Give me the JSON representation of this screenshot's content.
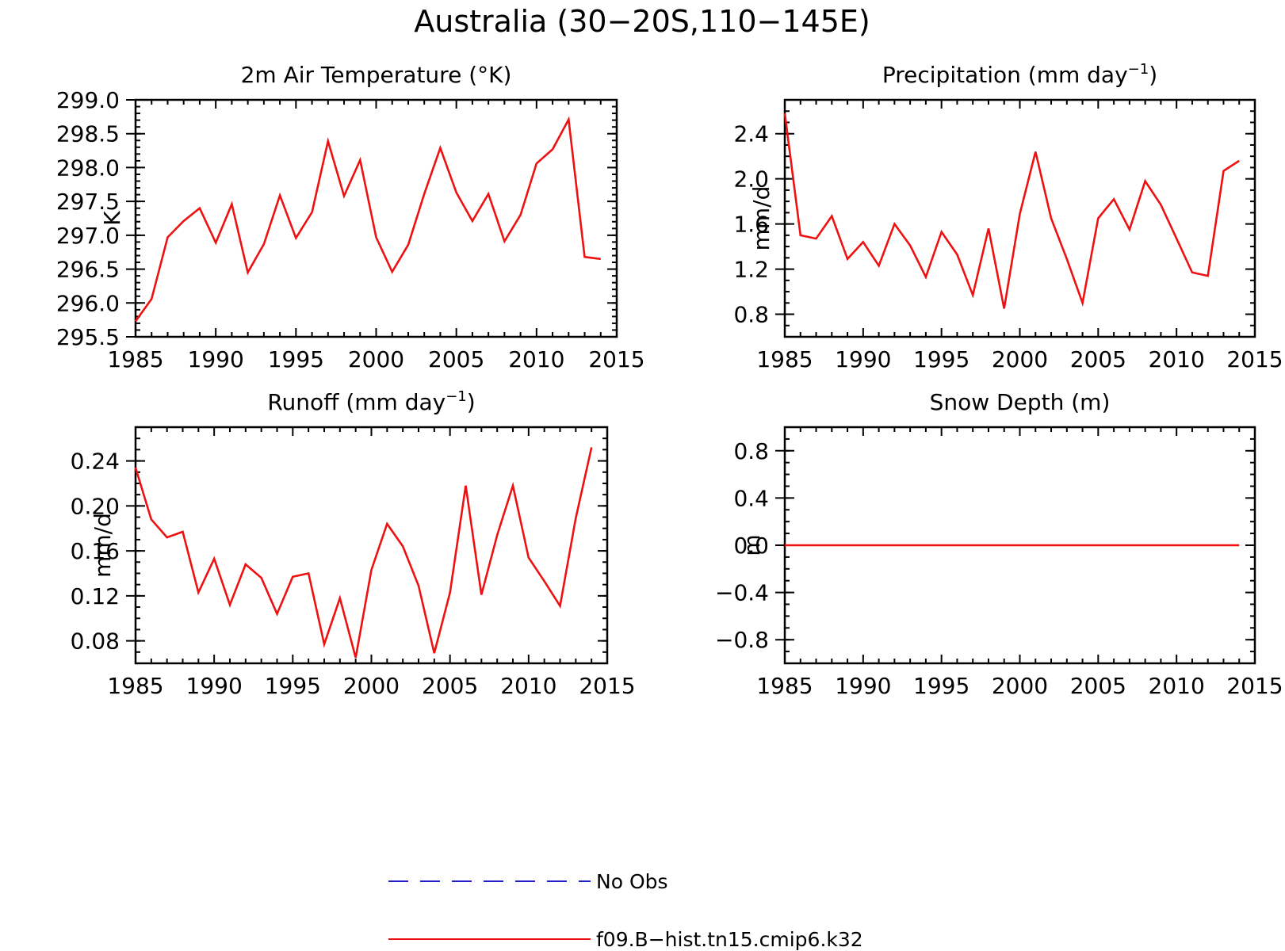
{
  "figure_title": "Australia (30−20S,110−145E)",
  "legend": {
    "entries": [
      {
        "label": "No Obs",
        "color": "#1f1fcc",
        "dash": true
      },
      {
        "label": "f09.B−hist.tn15.cmip6.k32",
        "color": "#ee1111",
        "dash": false
      }
    ]
  },
  "chart_data": [
    {
      "type": "line",
      "title": "2m Air Temperature (°K)",
      "ylabel": "K",
      "xlim": [
        1985,
        2015
      ],
      "ylim": [
        295.5,
        299.0
      ],
      "xticks": [
        1985,
        1990,
        1995,
        2000,
        2005,
        2010,
        2015
      ],
      "yticks": [
        295.5,
        296.0,
        296.5,
        297.0,
        297.5,
        298.0,
        298.5,
        299.0
      ],
      "ytick_labels": [
        "295.5",
        "296.0",
        "296.5",
        "297.0",
        "297.5",
        "298.0",
        "298.5",
        "299.0"
      ],
      "ytick_minor_step": 0.1,
      "x": [
        1985,
        1986,
        1987,
        1988,
        1989,
        1990,
        1991,
        1992,
        1993,
        1994,
        1995,
        1996,
        1997,
        1998,
        1999,
        2000,
        2001,
        2002,
        2003,
        2004,
        2005,
        2006,
        2007,
        2008,
        2009,
        2010,
        2011,
        2012,
        2013,
        2014
      ],
      "series": [
        {
          "name": "f09.B−hist.tn15.cmip6.k32",
          "color": "#ee1111",
          "values": [
            295.73,
            296.06,
            296.97,
            297.21,
            297.4,
            296.89,
            297.46,
            296.45,
            296.87,
            297.59,
            296.96,
            297.34,
            298.39,
            297.58,
            298.11,
            296.97,
            296.46,
            296.86,
            297.61,
            298.29,
            297.63,
            297.21,
            297.61,
            296.91,
            297.3,
            298.06,
            298.27,
            298.71,
            296.68,
            296.65
          ]
        }
      ]
    },
    {
      "type": "line",
      "title": "Precipitation (mm day",
      "title_sup": "−1",
      "title_end": ")",
      "ylabel": "mm/d",
      "xlim": [
        1985,
        2015
      ],
      "ylim": [
        0.6,
        2.7
      ],
      "xticks": [
        1985,
        1990,
        1995,
        2000,
        2005,
        2010,
        2015
      ],
      "yticks": [
        0.8,
        1.2,
        1.6,
        2.0,
        2.4
      ],
      "ytick_labels": [
        "0.8",
        "1.2",
        "1.6",
        "2.0",
        "2.4"
      ],
      "ytick_minor_step": 0.1,
      "x": [
        1985,
        1986,
        1987,
        1988,
        1989,
        1990,
        1991,
        1992,
        1993,
        1994,
        1995,
        1996,
        1997,
        1998,
        1999,
        2000,
        2001,
        2002,
        2003,
        2004,
        2005,
        2006,
        2007,
        2008,
        2009,
        2010,
        2011,
        2012,
        2013,
        2014
      ],
      "series": [
        {
          "name": "f09.B−hist.tn15.cmip6.k32",
          "color": "#ee1111",
          "values": [
            2.58,
            1.5,
            1.47,
            1.67,
            1.29,
            1.44,
            1.23,
            1.6,
            1.41,
            1.13,
            1.53,
            1.33,
            0.97,
            1.56,
            0.85,
            1.69,
            2.24,
            1.65,
            1.29,
            0.9,
            1.65,
            1.82,
            1.55,
            1.98,
            1.77,
            1.47,
            1.17,
            1.14,
            2.07,
            2.16
          ]
        }
      ]
    },
    {
      "type": "line",
      "title": "Runoff (mm day",
      "title_sup": "−1",
      "title_end": ")",
      "ylabel": "mm/d",
      "xlim": [
        1985,
        2015
      ],
      "ylim": [
        0.06,
        0.27
      ],
      "xticks": [
        1985,
        1990,
        1995,
        2000,
        2005,
        2010,
        2015
      ],
      "yticks": [
        0.08,
        0.12,
        0.16,
        0.2,
        0.24
      ],
      "ytick_labels": [
        "0.08",
        "0.12",
        "0.16",
        "0.20",
        "0.24"
      ],
      "ytick_minor_step": 0.01,
      "x": [
        1985,
        1986,
        1987,
        1988,
        1989,
        1990,
        1991,
        1992,
        1993,
        1994,
        1995,
        1996,
        1997,
        1998,
        1999,
        2000,
        2001,
        2002,
        2003,
        2004,
        2005,
        2006,
        2007,
        2008,
        2009,
        2010,
        2011,
        2012,
        2013,
        2014
      ],
      "series": [
        {
          "name": "f09.B−hist.tn15.cmip6.k32",
          "color": "#ee1111",
          "values": [
            0.234,
            0.188,
            0.172,
            0.177,
            0.123,
            0.153,
            0.112,
            0.148,
            0.136,
            0.104,
            0.137,
            0.14,
            0.077,
            0.118,
            0.065,
            0.143,
            0.184,
            0.164,
            0.129,
            0.069,
            0.123,
            0.218,
            0.121,
            0.174,
            0.218,
            0.154,
            0.133,
            0.111,
            0.189,
            0.252
          ]
        }
      ]
    },
    {
      "type": "line",
      "title": "Snow Depth (m)",
      "ylabel": "m",
      "xlim": [
        1985,
        2015
      ],
      "ylim": [
        -1.0,
        1.0
      ],
      "xticks": [
        1985,
        1990,
        1995,
        2000,
        2005,
        2010,
        2015
      ],
      "yticks": [
        -0.8,
        -0.4,
        0.0,
        0.4,
        0.8
      ],
      "ytick_labels": [
        "−0.8",
        "−0.4",
        "0.0",
        "0.4",
        "0.8"
      ],
      "ytick_minor_step": 0.1,
      "x": [
        1985,
        1986,
        1987,
        1988,
        1989,
        1990,
        1991,
        1992,
        1993,
        1994,
        1995,
        1996,
        1997,
        1998,
        1999,
        2000,
        2001,
        2002,
        2003,
        2004,
        2005,
        2006,
        2007,
        2008,
        2009,
        2010,
        2011,
        2012,
        2013,
        2014
      ],
      "series": [
        {
          "name": "f09.B−hist.tn15.cmip6.k32",
          "color": "#ee1111",
          "values": [
            0,
            0,
            0,
            0,
            0,
            0,
            0,
            0,
            0,
            0,
            0,
            0,
            0,
            0,
            0,
            0,
            0,
            0,
            0,
            0,
            0,
            0,
            0,
            0,
            0,
            0,
            0,
            0,
            0,
            0
          ]
        }
      ]
    }
  ]
}
